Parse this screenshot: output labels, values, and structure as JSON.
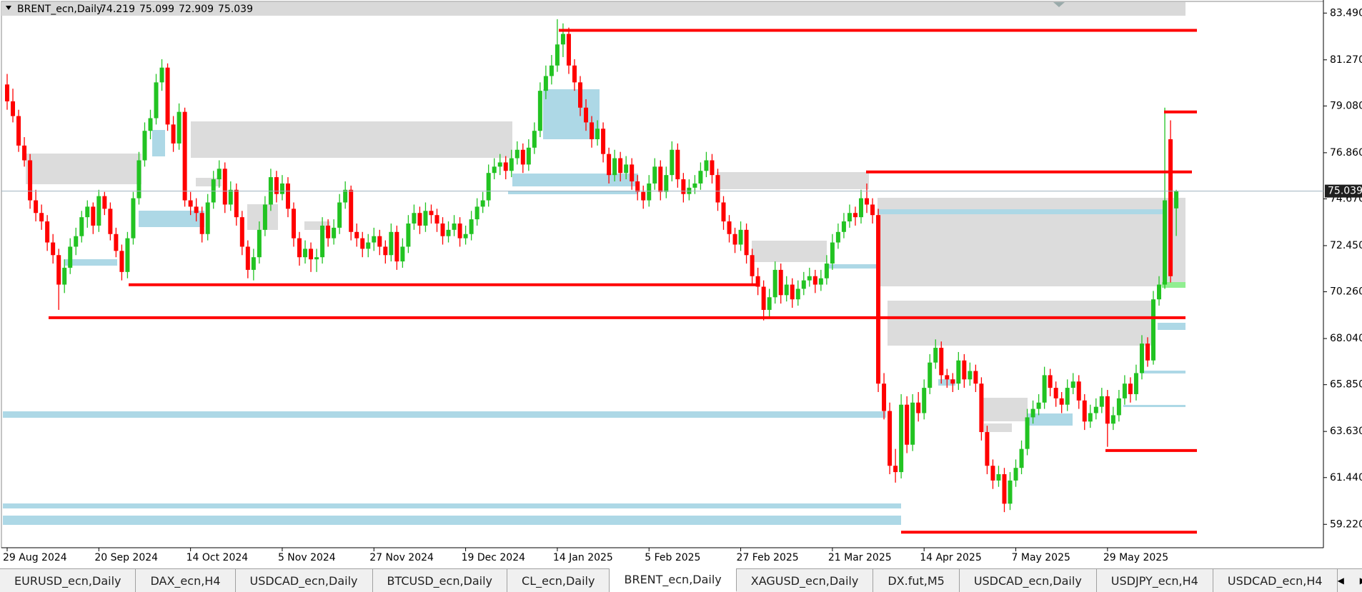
{
  "chart_data": {
    "type": "candlestick",
    "symbol": "BRENT_ecn,Daily",
    "categories": [
      "29 Aug 2024",
      null,
      null,
      null,
      null,
      null,
      null,
      null,
      null,
      null,
      null,
      null,
      null,
      null,
      null,
      null,
      "20 Sep 2024",
      null,
      null,
      null,
      null,
      null,
      null,
      null,
      null,
      null,
      null,
      null,
      null,
      null,
      null,
      null,
      "14 Oct 2024",
      null,
      null,
      null,
      null,
      null,
      null,
      null,
      null,
      null,
      null,
      null,
      null,
      null,
      null,
      null,
      "5 Nov 2024",
      null,
      null,
      null,
      null,
      null,
      null,
      null,
      null,
      null,
      null,
      null,
      null,
      null,
      null,
      null,
      "27 Nov 2024",
      null,
      null,
      null,
      null,
      null,
      null,
      null,
      null,
      null,
      null,
      null,
      null,
      null,
      null,
      null,
      "19 Dec 2024",
      null,
      null,
      null,
      null,
      null,
      null,
      null,
      null,
      null,
      null,
      null,
      null,
      null,
      null,
      null,
      "14 Jan 2025",
      null,
      null,
      null,
      null,
      null,
      null,
      null,
      null,
      null,
      null,
      null,
      null,
      null,
      null,
      null,
      "5 Feb 2025",
      null,
      null,
      null,
      null,
      null,
      null,
      null,
      null,
      null,
      null,
      null,
      null,
      null,
      null,
      null,
      "27 Feb 2025",
      null,
      null,
      null,
      null,
      null,
      null,
      null,
      null,
      null,
      null,
      null,
      null,
      null,
      null,
      null,
      "21 Mar 2025",
      null,
      null,
      null,
      null,
      null,
      null,
      null,
      null,
      null,
      null,
      null,
      null,
      null,
      null,
      null,
      "14 Apr 2025",
      null,
      null,
      null,
      null,
      null,
      null,
      null,
      null,
      null,
      null,
      null,
      null,
      null,
      null,
      null,
      "7 May 2025",
      null,
      null,
      null,
      null,
      null,
      null,
      null,
      null,
      null,
      null,
      null,
      null,
      null,
      null,
      null,
      "29 May 2025",
      null,
      null,
      null,
      null,
      null,
      null,
      null,
      null,
      null,
      null,
      null,
      null
    ],
    "candles": [
      [
        80.1,
        80.6,
        78.9,
        79.3
      ],
      [
        79.3,
        79.9,
        78.3,
        78.6
      ],
      [
        78.6,
        78.9,
        76.9,
        77.2
      ],
      [
        77.2,
        77.6,
        76.2,
        76.5
      ],
      [
        76.5,
        76.8,
        74.2,
        74.6
      ],
      [
        74.6,
        75.1,
        73.6,
        74.0
      ],
      [
        74.0,
        74.4,
        73.2,
        73.6
      ],
      [
        73.6,
        73.9,
        72.2,
        72.6
      ],
      [
        72.6,
        73.0,
        71.6,
        72.0
      ],
      [
        72.0,
        72.3,
        69.4,
        70.6
      ],
      [
        70.6,
        71.8,
        70.2,
        71.4
      ],
      [
        71.4,
        72.8,
        71.1,
        72.4
      ],
      [
        72.4,
        73.3,
        72.0,
        72.9
      ],
      [
        72.9,
        74.1,
        72.6,
        73.8
      ],
      [
        73.8,
        74.6,
        73.3,
        74.3
      ],
      [
        74.3,
        74.5,
        73.0,
        73.4
      ],
      [
        73.4,
        75.1,
        73.1,
        74.8
      ],
      [
        74.8,
        75.0,
        73.9,
        74.2
      ],
      [
        74.2,
        74.5,
        72.7,
        73.0
      ],
      [
        73.0,
        73.3,
        71.9,
        72.2
      ],
      [
        72.2,
        72.5,
        70.8,
        71.2
      ],
      [
        71.2,
        73.1,
        70.9,
        72.8
      ],
      [
        72.8,
        75.0,
        72.5,
        74.7
      ],
      [
        74.7,
        76.9,
        74.4,
        76.5
      ],
      [
        76.5,
        78.3,
        76.2,
        77.9
      ],
      [
        77.9,
        78.9,
        77.5,
        78.5
      ],
      [
        78.5,
        80.6,
        78.2,
        80.2
      ],
      [
        80.2,
        81.3,
        79.8,
        80.9
      ],
      [
        80.9,
        81.1,
        77.9,
        78.2
      ],
      [
        78.2,
        78.6,
        76.9,
        77.3
      ],
      [
        77.3,
        79.2,
        77.0,
        78.8
      ],
      [
        78.8,
        79.0,
        74.3,
        74.6
      ],
      [
        74.6,
        75.0,
        73.9,
        74.3
      ],
      [
        74.3,
        74.7,
        73.6,
        74.0
      ],
      [
        74.0,
        74.3,
        72.6,
        73.0
      ],
      [
        73.0,
        74.9,
        72.7,
        74.5
      ],
      [
        74.5,
        76.0,
        74.2,
        75.6
      ],
      [
        75.6,
        76.5,
        75.2,
        76.1
      ],
      [
        76.1,
        76.4,
        74.0,
        74.4
      ],
      [
        74.4,
        75.5,
        74.1,
        75.1
      ],
      [
        75.1,
        75.4,
        73.4,
        73.8
      ],
      [
        73.8,
        74.1,
        72.0,
        72.4
      ],
      [
        72.4,
        72.7,
        70.9,
        71.3
      ],
      [
        71.3,
        72.3,
        70.8,
        71.9
      ],
      [
        71.9,
        73.6,
        71.6,
        73.2
      ],
      [
        73.2,
        74.8,
        72.9,
        74.4
      ],
      [
        74.4,
        76.1,
        74.1,
        75.7
      ],
      [
        75.7,
        76.0,
        74.5,
        74.9
      ],
      [
        74.9,
        75.8,
        74.6,
        75.4
      ],
      [
        75.4,
        75.7,
        73.8,
        74.2
      ],
      [
        74.2,
        74.5,
        72.4,
        72.8
      ],
      [
        72.8,
        73.1,
        71.5,
        71.9
      ],
      [
        71.9,
        72.7,
        71.6,
        72.3
      ],
      [
        72.3,
        72.6,
        71.2,
        71.8
      ],
      [
        71.8,
        72.3,
        71.2,
        71.9
      ],
      [
        71.9,
        73.8,
        71.6,
        73.4
      ],
      [
        73.4,
        73.7,
        72.4,
        72.8
      ],
      [
        72.8,
        73.7,
        72.5,
        73.3
      ],
      [
        73.3,
        74.9,
        73.0,
        74.5
      ],
      [
        74.5,
        75.5,
        74.2,
        75.1
      ],
      [
        75.1,
        75.3,
        72.7,
        73.1
      ],
      [
        73.1,
        73.5,
        72.4,
        72.8
      ],
      [
        72.8,
        73.1,
        71.9,
        72.3
      ],
      [
        72.3,
        73.0,
        71.9,
        72.6
      ],
      [
        72.6,
        73.3,
        72.2,
        72.9
      ],
      [
        72.9,
        73.2,
        72.0,
        72.4
      ],
      [
        72.4,
        72.7,
        71.6,
        72.0
      ],
      [
        72.0,
        73.5,
        71.7,
        73.1
      ],
      [
        73.1,
        73.4,
        71.3,
        71.7
      ],
      [
        71.7,
        72.8,
        71.4,
        72.4
      ],
      [
        72.4,
        73.9,
        72.1,
        73.5
      ],
      [
        73.5,
        74.4,
        73.2,
        74.0
      ],
      [
        74.0,
        74.3,
        73.0,
        73.4
      ],
      [
        73.4,
        74.5,
        73.1,
        74.1
      ],
      [
        74.1,
        74.4,
        73.5,
        73.9
      ],
      [
        73.9,
        74.2,
        73.1,
        73.5
      ],
      [
        73.5,
        73.8,
        72.5,
        72.9
      ],
      [
        72.9,
        73.6,
        72.6,
        73.2
      ],
      [
        73.2,
        73.9,
        72.9,
        73.5
      ],
      [
        73.5,
        73.8,
        72.4,
        72.8
      ],
      [
        72.8,
        73.4,
        72.5,
        73.0
      ],
      [
        73.0,
        74.1,
        72.7,
        73.7
      ],
      [
        73.7,
        74.7,
        73.4,
        74.3
      ],
      [
        74.3,
        75.0,
        74.0,
        74.6
      ],
      [
        74.6,
        76.3,
        74.3,
        75.9
      ],
      [
        75.9,
        76.6,
        75.6,
        76.2
      ],
      [
        76.2,
        76.8,
        75.8,
        76.4
      ],
      [
        76.4,
        76.7,
        75.6,
        76.0
      ],
      [
        76.0,
        77.0,
        75.7,
        76.6
      ],
      [
        76.6,
        77.4,
        76.3,
        77.0
      ],
      [
        77.0,
        77.3,
        75.9,
        76.3
      ],
      [
        76.3,
        77.5,
        76.0,
        77.1
      ],
      [
        77.1,
        78.3,
        76.8,
        77.9
      ],
      [
        77.9,
        80.2,
        77.6,
        79.8
      ],
      [
        79.8,
        81.0,
        79.4,
        80.5
      ],
      [
        80.5,
        81.5,
        80.1,
        81.0
      ],
      [
        81.0,
        83.2,
        80.7,
        82.0
      ],
      [
        82.0,
        83.0,
        81.4,
        82.5
      ],
      [
        82.5,
        82.8,
        80.6,
        81.0
      ],
      [
        81.0,
        81.3,
        79.8,
        80.2
      ],
      [
        80.2,
        80.5,
        78.6,
        79.0
      ],
      [
        79.0,
        79.4,
        77.9,
        78.3
      ],
      [
        78.3,
        78.6,
        77.1,
        77.5
      ],
      [
        77.5,
        78.4,
        77.2,
        78.0
      ],
      [
        78.0,
        78.3,
        76.4,
        76.8
      ],
      [
        76.8,
        77.1,
        75.4,
        75.8
      ],
      [
        75.8,
        77.0,
        75.5,
        76.6
      ],
      [
        76.6,
        76.9,
        75.5,
        75.9
      ],
      [
        75.9,
        76.7,
        75.6,
        76.3
      ],
      [
        76.3,
        76.6,
        75.1,
        75.5
      ],
      [
        75.5,
        75.8,
        74.6,
        75.0
      ],
      [
        75.0,
        75.3,
        74.2,
        74.6
      ],
      [
        74.6,
        75.8,
        74.3,
        75.4
      ],
      [
        75.4,
        76.6,
        75.1,
        76.2
      ],
      [
        76.2,
        76.5,
        74.6,
        75.0
      ],
      [
        75.0,
        76.2,
        74.7,
        75.8
      ],
      [
        75.8,
        77.4,
        75.5,
        77.0
      ],
      [
        77.0,
        77.3,
        75.2,
        75.6
      ],
      [
        75.6,
        75.9,
        74.5,
        74.9
      ],
      [
        74.9,
        75.6,
        74.6,
        75.2
      ],
      [
        75.2,
        75.8,
        74.9,
        75.4
      ],
      [
        75.4,
        76.4,
        75.1,
        76.0
      ],
      [
        76.0,
        76.9,
        75.7,
        76.5
      ],
      [
        76.5,
        76.8,
        75.4,
        75.8
      ],
      [
        75.8,
        76.1,
        74.1,
        74.5
      ],
      [
        74.5,
        74.8,
        73.2,
        73.6
      ],
      [
        73.6,
        73.9,
        72.6,
        73.0
      ],
      [
        73.0,
        73.3,
        72.1,
        72.5
      ],
      [
        72.5,
        73.6,
        72.2,
        73.2
      ],
      [
        73.2,
        73.5,
        71.6,
        72.0
      ],
      [
        72.0,
        72.3,
        70.6,
        71.0
      ],
      [
        71.0,
        71.4,
        70.1,
        70.5
      ],
      [
        70.5,
        70.8,
        68.9,
        69.4
      ],
      [
        69.4,
        70.4,
        69.0,
        70.0
      ],
      [
        70.0,
        71.7,
        69.7,
        71.3
      ],
      [
        71.3,
        71.6,
        69.7,
        70.1
      ],
      [
        70.1,
        71.0,
        69.8,
        70.6
      ],
      [
        70.6,
        70.9,
        69.5,
        69.9
      ],
      [
        69.9,
        70.8,
        69.6,
        70.4
      ],
      [
        70.4,
        71.2,
        70.1,
        70.8
      ],
      [
        70.8,
        71.4,
        70.5,
        71.0
      ],
      [
        71.0,
        71.3,
        70.2,
        70.6
      ],
      [
        70.6,
        71.3,
        70.3,
        70.9
      ],
      [
        70.9,
        72.0,
        70.6,
        71.6
      ],
      [
        71.6,
        73.0,
        71.3,
        72.6
      ],
      [
        72.6,
        73.5,
        72.3,
        73.1
      ],
      [
        73.1,
        74.0,
        72.8,
        73.6
      ],
      [
        73.6,
        74.4,
        73.3,
        74.0
      ],
      [
        74.0,
        74.3,
        73.4,
        73.8
      ],
      [
        73.8,
        75.1,
        73.5,
        74.7
      ],
      [
        74.7,
        75.4,
        74.0,
        74.4
      ],
      [
        74.4,
        74.7,
        73.5,
        73.9
      ],
      [
        73.9,
        74.2,
        65.5,
        65.9
      ],
      [
        65.9,
        66.4,
        64.2,
        64.6
      ],
      [
        64.6,
        65.0,
        61.6,
        62.0
      ],
      [
        62.0,
        62.8,
        61.2,
        61.7
      ],
      [
        61.7,
        65.4,
        61.4,
        64.9
      ],
      [
        64.9,
        65.3,
        62.6,
        63.0
      ],
      [
        63.0,
        65.4,
        62.7,
        65.0
      ],
      [
        65.0,
        65.5,
        64.1,
        64.5
      ],
      [
        64.5,
        66.1,
        64.2,
        65.7
      ],
      [
        65.7,
        67.3,
        65.4,
        66.9
      ],
      [
        66.9,
        68.0,
        66.6,
        67.6
      ],
      [
        67.6,
        67.9,
        65.9,
        66.3
      ],
      [
        66.3,
        66.6,
        65.7,
        66.1
      ],
      [
        66.1,
        66.4,
        65.5,
        65.9
      ],
      [
        65.9,
        67.4,
        65.6,
        67.0
      ],
      [
        67.0,
        67.3,
        65.7,
        66.1
      ],
      [
        66.1,
        66.9,
        65.8,
        66.5
      ],
      [
        66.5,
        66.8,
        65.5,
        65.9
      ],
      [
        65.9,
        66.2,
        63.2,
        63.6
      ],
      [
        63.6,
        63.9,
        61.6,
        62.0
      ],
      [
        62.0,
        62.3,
        60.9,
        61.3
      ],
      [
        61.3,
        62.0,
        61.0,
        61.6
      ],
      [
        61.6,
        61.9,
        59.8,
        60.2
      ],
      [
        60.2,
        61.7,
        59.9,
        61.3
      ],
      [
        61.3,
        62.3,
        61.0,
        61.9
      ],
      [
        61.9,
        63.2,
        61.6,
        62.8
      ],
      [
        62.8,
        64.7,
        62.5,
        64.3
      ],
      [
        64.3,
        65.1,
        64.0,
        64.7
      ],
      [
        64.7,
        65.4,
        64.4,
        65.0
      ],
      [
        65.0,
        66.7,
        64.7,
        66.3
      ],
      [
        66.3,
        66.6,
        65.3,
        65.7
      ],
      [
        65.7,
        66.0,
        64.8,
        65.2
      ],
      [
        65.2,
        65.5,
        64.5,
        64.9
      ],
      [
        64.9,
        66.1,
        64.6,
        65.7
      ],
      [
        65.7,
        66.4,
        65.4,
        66.0
      ],
      [
        66.0,
        66.3,
        64.7,
        65.1
      ],
      [
        65.1,
        65.4,
        63.7,
        64.1
      ],
      [
        64.1,
        64.9,
        63.8,
        64.5
      ],
      [
        64.5,
        65.2,
        64.2,
        64.8
      ],
      [
        64.8,
        65.7,
        64.5,
        65.3
      ],
      [
        65.3,
        65.6,
        62.9,
        64.0
      ],
      [
        64.0,
        64.8,
        63.7,
        64.4
      ],
      [
        64.4,
        65.6,
        64.1,
        65.2
      ],
      [
        65.2,
        66.3,
        64.9,
        65.9
      ],
      [
        65.9,
        66.2,
        65.0,
        65.4
      ],
      [
        65.4,
        66.8,
        65.1,
        66.4
      ],
      [
        66.4,
        68.2,
        66.1,
        67.8
      ],
      [
        67.8,
        68.1,
        66.7,
        67.0
      ],
      [
        67.0,
        70.3,
        66.8,
        69.9
      ],
      [
        69.9,
        71.0,
        69.6,
        70.6
      ],
      [
        70.6,
        79.0,
        70.4,
        74.6
      ],
      [
        77.5,
        78.4,
        70.7,
        71.0
      ],
      [
        74.219,
        75.099,
        72.909,
        75.039
      ]
    ],
    "up_color": "#22c322",
    "down_color": "#ff0000",
    "ylim": [
      58.11,
      84.11
    ],
    "yticks": [
      {
        "value": 83.49,
        "label": "83.490"
      },
      {
        "value": 81.27,
        "label": "81.270"
      },
      {
        "value": 79.08,
        "label": "79.080"
      },
      {
        "value": 76.86,
        "label": "76.860"
      },
      {
        "value": 74.67,
        "label": "74.670"
      },
      {
        "value": 72.45,
        "label": "72.450"
      },
      {
        "value": 70.26,
        "label": "70.260"
      },
      {
        "value": 68.04,
        "label": "68.040"
      },
      {
        "value": 65.85,
        "label": "65.850"
      },
      {
        "value": 63.63,
        "label": "63.630"
      },
      {
        "value": 61.44,
        "label": "61.440"
      },
      {
        "value": 59.22,
        "label": "59.220"
      }
    ]
  },
  "tabs": {
    "items": [
      "EURUSD_ecn,Daily",
      "DAX_ecn,H4",
      "USDCAD_ecn,Daily",
      "BTCUSD_ecn,Daily",
      "CL_ecn,Daily",
      "BRENT_ecn,Daily",
      "XAGUSD_ecn,Daily",
      "DX.fut,M5",
      "USDCAD_ecn,Daily",
      "USDJPY_ecn,H4",
      "USDCAD_ecn,H4"
    ],
    "active": 5
  }
}
